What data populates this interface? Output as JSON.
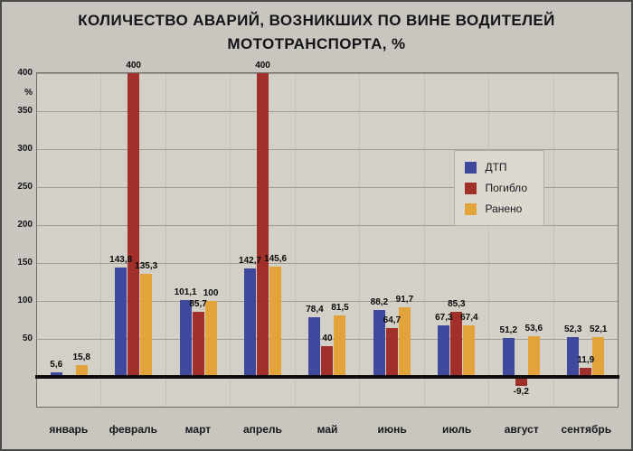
{
  "title": {
    "line1": "КОЛИЧЕСТВО АВАРИЙ, ВОЗНИКШИХ ПО ВИНЕ ВОДИТЕЛЕЙ",
    "line2": "МОТОТРАНСПОРТА, %"
  },
  "chart_data": {
    "type": "bar",
    "title": "КОЛИЧЕСТВО АВАРИЙ, ВОЗНИКШИХ ПО ВИНЕ ВОДИТЕЛЕЙ МОТОТРАНСПОРТА, %",
    "categories": [
      "январь",
      "февраль",
      "март",
      "апрель",
      "май",
      "июнь",
      "июль",
      "август",
      "сентябрь"
    ],
    "series": [
      {
        "name": "ДТП",
        "color": "#3e489c",
        "values": [
          5.6,
          143.8,
          101.1,
          142.7,
          78.4,
          88.2,
          67.3,
          51.2,
          52.3
        ]
      },
      {
        "name": "Погибло",
        "color": "#a1302a",
        "values": [
          null,
          400,
          85.7,
          400,
          40,
          64.7,
          85.3,
          -9.2,
          11.9
        ]
      },
      {
        "name": "Ранено",
        "color": "#e2a33b",
        "values": [
          15.8,
          135.3,
          100,
          145.6,
          81.5,
          91.7,
          67.4,
          53.6,
          52.1
        ]
      }
    ],
    "xlabel": "",
    "ylabel": "%",
    "y_ticks": [
      400,
      350,
      300,
      250,
      200,
      150,
      100,
      50
    ],
    "ylim": [
      -30,
      410
    ],
    "grid": "horizontal",
    "legend_position": "middle-right",
    "decimal_separator": ","
  }
}
